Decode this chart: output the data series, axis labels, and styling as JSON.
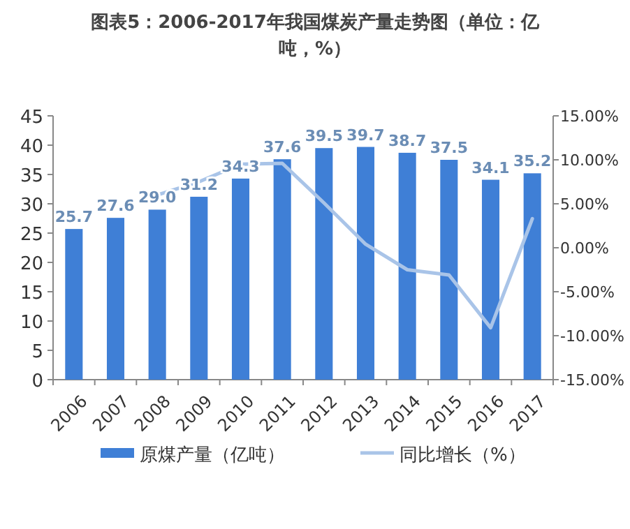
{
  "chart_data": {
    "type": "bar",
    "title": "图表5：2006-2017年我国煤炭产量走势图（单位：亿吨，%）",
    "categories": [
      "2006",
      "2007",
      "2008",
      "2009",
      "2010",
      "2011",
      "2012",
      "2013",
      "2014",
      "2015",
      "2016",
      "2017"
    ],
    "series": [
      {
        "name": "原煤产量（亿吨）",
        "color": "#3f7fd6",
        "values": [
          25.7,
          27.6,
          29.0,
          31.2,
          34.3,
          37.6,
          39.5,
          39.7,
          38.7,
          37.5,
          34.1,
          35.2
        ],
        "value_labels": [
          "25.7",
          "27.6",
          "29.0",
          "31.2",
          "34.3",
          "37.6",
          "39.5",
          "39.7",
          "38.7",
          "37.5",
          "34.1",
          "35.2"
        ]
      },
      {
        "name": "同比增长（%）",
        "type": "line",
        "axis": "y2",
        "color": "#a9c4e8",
        "values": [
          null,
          null,
          6.0,
          7.5,
          9.5,
          9.6,
          5.1,
          0.4,
          -2.5,
          -3.1,
          -9.1,
          3.3
        ]
      }
    ],
    "ylim": [
      0,
      45
    ],
    "yticks": [
      0,
      5,
      10,
      15,
      20,
      25,
      30,
      35,
      40,
      45
    ],
    "y2lim": [
      -15,
      15
    ],
    "y2ticks": [
      {
        "value": -15,
        "label": "-15.00%"
      },
      {
        "value": -10,
        "label": "-10.00%"
      },
      {
        "value": -5,
        "label": "-5.00%"
      },
      {
        "value": 0,
        "label": "0.00%"
      },
      {
        "value": 5,
        "label": "5.00%"
      },
      {
        "value": 10,
        "label": "10.00%"
      },
      {
        "value": 15,
        "label": "15.00%"
      }
    ],
    "legend": "bottom",
    "grid": false
  }
}
